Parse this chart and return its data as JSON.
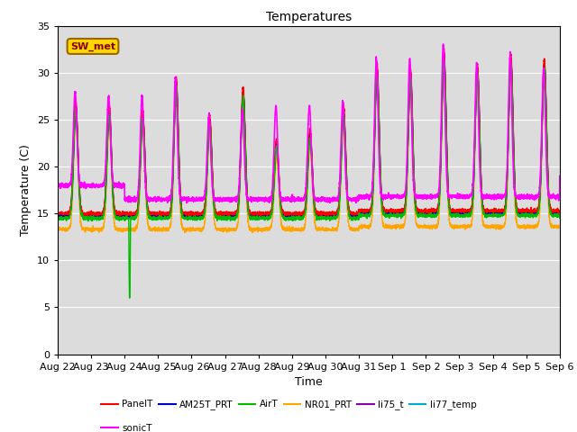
{
  "title": "Temperatures",
  "xlabel": "Time",
  "ylabel": "Temperature (C)",
  "ylim": [
    0,
    35
  ],
  "yticks": [
    0,
    5,
    10,
    15,
    20,
    25,
    30,
    35
  ],
  "annotation_text": "SW_met",
  "annotation_color": "#8B0000",
  "annotation_bg": "#FFD700",
  "series": {
    "PanelT": {
      "color": "#FF0000",
      "lw": 1.0
    },
    "AM25T_PRT": {
      "color": "#0000CC",
      "lw": 1.0
    },
    "AirT": {
      "color": "#00BB00",
      "lw": 1.0
    },
    "NR01_PRT": {
      "color": "#FFA500",
      "lw": 1.0
    },
    "li75_t": {
      "color": "#8800AA",
      "lw": 1.0
    },
    "li77_temp": {
      "color": "#00AACC",
      "lw": 1.0
    },
    "sonicT": {
      "color": "#FF00FF",
      "lw": 1.2
    }
  },
  "x_tick_labels": [
    "Aug 22",
    "Aug 23",
    "Aug 24",
    "Aug 25",
    "Aug 26",
    "Aug 27",
    "Aug 28",
    "Aug 29",
    "Aug 30",
    "Aug 31",
    "Sep 1",
    "Sep 2",
    "Sep 3",
    "Sep 4",
    "Sep 5",
    "Sep 6"
  ],
  "n_days": 15,
  "plot_bg": "#DCDCDC",
  "fig_bg": "#FFFFFF",
  "grid_color": "#FFFFFF",
  "figsize": [
    6.4,
    4.8
  ],
  "dpi": 100
}
